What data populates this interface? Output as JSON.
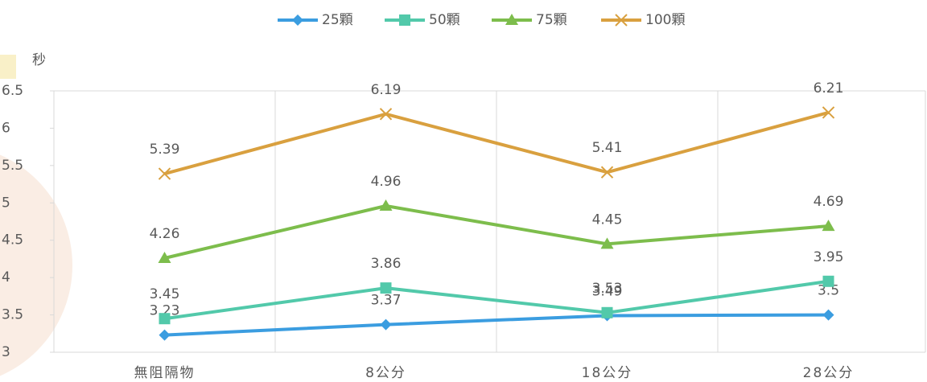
{
  "chart_data": {
    "type": "line",
    "y_label": "秒",
    "categories": [
      "無阻隔物",
      "8公分",
      "18公分",
      "28公分"
    ],
    "series": [
      {
        "name": "25顆",
        "color": "#3b9de0",
        "marker": "diamond",
        "values": [
          3.23,
          3.37,
          3.49,
          3.5
        ]
      },
      {
        "name": "50顆",
        "color": "#52c9aa",
        "marker": "square",
        "values": [
          3.45,
          3.86,
          3.53,
          3.95
        ]
      },
      {
        "name": "75顆",
        "color": "#7dbd4c",
        "marker": "triangle",
        "values": [
          4.26,
          4.96,
          4.45,
          4.69
        ]
      },
      {
        "name": "100顆",
        "color": "#d9a03f",
        "marker": "x",
        "values": [
          5.39,
          6.19,
          5.41,
          6.21
        ]
      }
    ],
    "ylim": [
      3,
      6.5
    ],
    "yticks": [
      3,
      3.5,
      4,
      4.5,
      5,
      5.5,
      6,
      6.5
    ],
    "legend": "top"
  }
}
